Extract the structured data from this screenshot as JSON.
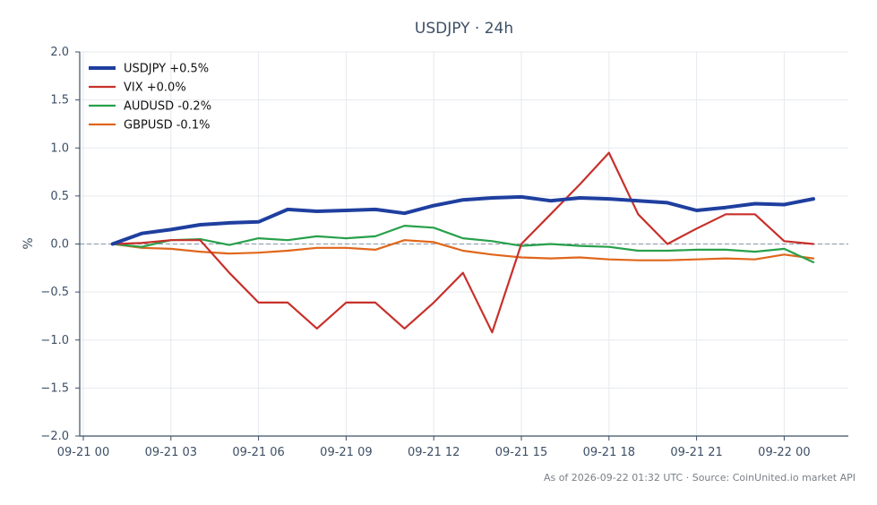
{
  "chart_data": {
    "type": "line",
    "title": "USDJPY · 24h",
    "xlabel": "",
    "ylabel": "%",
    "ylim": [
      -2.0,
      2.0
    ],
    "yticks": [
      "2.0",
      "1.5",
      "1.0",
      "0.5",
      "0.0",
      "−0.5",
      "−1.0",
      "−1.5",
      "−2.0"
    ],
    "xticks": [
      "09-21 00",
      "09-21 03",
      "09-21 06",
      "09-21 09",
      "09-21 12",
      "09-21 15",
      "09-21 18",
      "09-21 21",
      "09-22 00"
    ],
    "x": [
      "09-21 01",
      "09-21 02",
      "09-21 03",
      "09-21 04",
      "09-21 05",
      "09-21 06",
      "09-21 07",
      "09-21 08",
      "09-21 09",
      "09-21 10",
      "09-21 11",
      "09-21 12",
      "09-21 13",
      "09-21 14",
      "09-21 15",
      "09-21 16",
      "09-21 17",
      "09-21 18",
      "09-21 19",
      "09-21 20",
      "09-21 21",
      "09-21 22",
      "09-21 23",
      "09-22 00",
      "09-22 01"
    ],
    "grid": true,
    "zero_line": true,
    "legend_position": "top-left",
    "series": [
      {
        "name": "USDJPY +0.5%",
        "color": "#1f3f9f",
        "width": "thick",
        "values": [
          0.0,
          0.11,
          0.15,
          0.2,
          0.22,
          0.23,
          0.36,
          0.34,
          0.35,
          0.36,
          0.32,
          0.4,
          0.46,
          0.48,
          0.49,
          0.45,
          0.48,
          0.47,
          0.45,
          0.43,
          0.35,
          0.38,
          0.42,
          0.41,
          0.47
        ]
      },
      {
        "name": "VIX +0.0%",
        "color": "#c8302b",
        "width": "normal",
        "values": [
          0.0,
          0.01,
          0.04,
          0.04,
          -0.3,
          -0.61,
          -0.61,
          -0.88,
          -0.61,
          -0.61,
          -0.88,
          -0.61,
          -0.3,
          -0.92,
          0.0,
          0.31,
          0.62,
          0.95,
          0.31,
          0.0,
          0.16,
          0.31,
          0.31,
          0.03,
          0.0
        ]
      },
      {
        "name": "AUDUSD -0.2%",
        "color": "#27a04a",
        "width": "normal",
        "values": [
          0.0,
          -0.03,
          0.04,
          0.05,
          -0.01,
          0.06,
          0.04,
          0.08,
          0.06,
          0.08,
          0.19,
          0.17,
          0.06,
          0.03,
          -0.02,
          0.0,
          -0.02,
          -0.03,
          -0.07,
          -0.07,
          -0.06,
          -0.06,
          -0.08,
          -0.05,
          -0.19
        ]
      },
      {
        "name": "GBPUSD -0.1%",
        "color": "#e0661b",
        "width": "normal",
        "values": [
          0.0,
          -0.04,
          -0.05,
          -0.08,
          -0.1,
          -0.09,
          -0.07,
          -0.04,
          -0.04,
          -0.06,
          0.04,
          0.02,
          -0.07,
          -0.11,
          -0.14,
          -0.15,
          -0.14,
          -0.16,
          -0.17,
          -0.17,
          -0.16,
          -0.15,
          -0.16,
          -0.11,
          -0.15
        ]
      }
    ]
  },
  "footer": "As of 2026-09-22 01:32 UTC · Source: CoinUnited.io market API"
}
